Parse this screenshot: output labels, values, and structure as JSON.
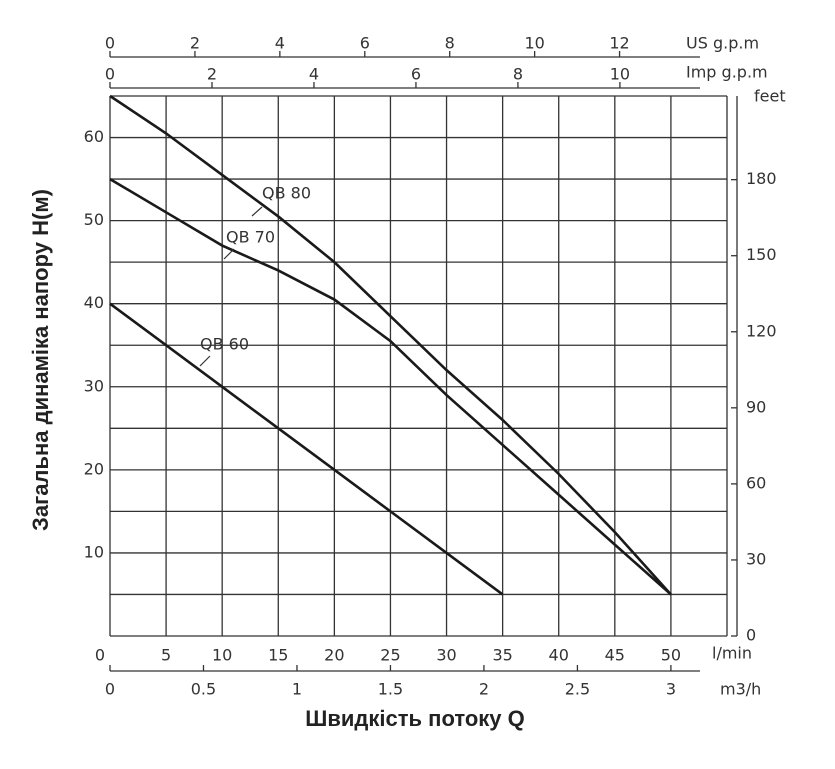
{
  "chart_data": {
    "type": "line",
    "xlabel": "Швидкість потоку Q",
    "ylabel": "Загальна динаміка напору H(м)",
    "x_unit": "l/min",
    "xlim": [
      0,
      55
    ],
    "xticks": [
      0,
      5,
      10,
      15,
      20,
      25,
      30,
      35,
      40,
      45,
      50
    ],
    "ylim": [
      0,
      65
    ],
    "yticks": [
      10,
      20,
      30,
      40,
      50,
      60
    ],
    "y_minor_grid": [
      5,
      15,
      25,
      35,
      45,
      55
    ],
    "y2_unit": "feet",
    "y2lim": [
      0,
      213
    ],
    "y2ticks": [
      0,
      30,
      60,
      90,
      120,
      150,
      180
    ],
    "x_m3h": {
      "unit": "m3/h",
      "lim": [
        0,
        3.3
      ],
      "ticks": [
        0,
        0.5,
        1,
        1.5,
        2,
        2.5,
        3
      ]
    },
    "x_us": {
      "unit": "US g.p.m",
      "lim": [
        0,
        14.53
      ],
      "ticks": [
        0,
        2,
        4,
        6,
        8,
        10,
        12
      ]
    },
    "x_imp": {
      "unit": "Imp g.p.m",
      "lim": [
        0,
        12.1
      ],
      "ticks": [
        0,
        2,
        4,
        6,
        8,
        10
      ]
    },
    "grid": true,
    "series": [
      {
        "name": "QB 80",
        "color": "#1a1a1a",
        "x": [
          0,
          5,
          10,
          15,
          20,
          25,
          30,
          35,
          40,
          45,
          50
        ],
        "values": [
          65,
          60.5,
          55.5,
          50.5,
          45,
          38.5,
          32,
          26,
          19.5,
          12.5,
          5
        ]
      },
      {
        "name": "QB 70",
        "color": "#1a1a1a",
        "x": [
          0,
          5,
          10,
          15,
          20,
          25,
          30,
          35,
          40,
          45,
          50
        ],
        "values": [
          55,
          51,
          47,
          44,
          40.5,
          35.5,
          29,
          23,
          17,
          11,
          5
        ]
      },
      {
        "name": "QB 60",
        "color": "#1a1a1a",
        "x": [
          0,
          5,
          10,
          15,
          20,
          25,
          30,
          35
        ],
        "values": [
          40,
          35,
          30,
          25,
          20,
          15,
          10,
          5
        ]
      }
    ]
  }
}
